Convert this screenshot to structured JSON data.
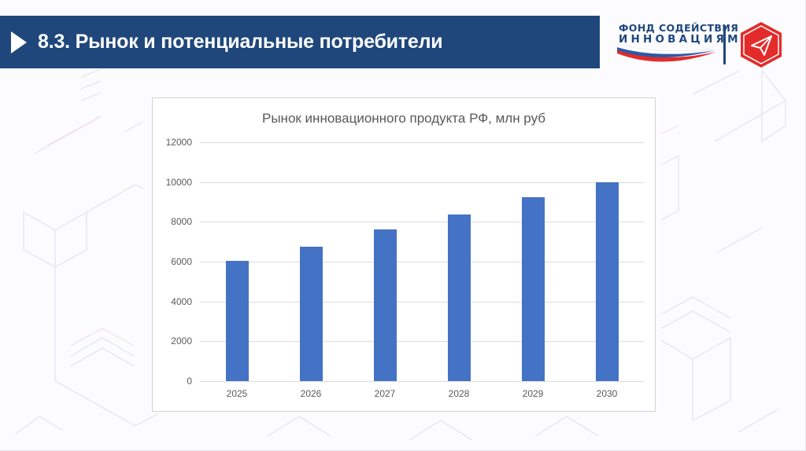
{
  "header": {
    "title": "8.3. Рынок и потенциальные потребители",
    "background_color": "#1f477c"
  },
  "logo": {
    "line1": "ФОНД СОДЕЙСТВИЯ",
    "line2": "ИННОВАЦИЯМ",
    "icon": "paper-plane-hexagon-icon",
    "brand_blue": "#1f477c",
    "brand_red": "#e32b2b"
  },
  "chart_data": {
    "type": "bar",
    "title": "Рынок инновационного продукта РФ, млн руб",
    "categories": [
      "2025",
      "2026",
      "2027",
      "2028",
      "2029",
      "2030"
    ],
    "values": [
      6050,
      6750,
      7600,
      8350,
      9250,
      10000
    ],
    "xlabel": "",
    "ylabel": "",
    "ylim": [
      0,
      12000
    ],
    "yticks": [
      0,
      2000,
      4000,
      6000,
      8000,
      10000,
      12000
    ],
    "ytick_labels": [
      "0",
      "2000",
      "4000",
      "6000",
      "8000",
      "10000",
      "12000"
    ],
    "grid": true,
    "legend": null,
    "bar_color": "#4472c4"
  }
}
